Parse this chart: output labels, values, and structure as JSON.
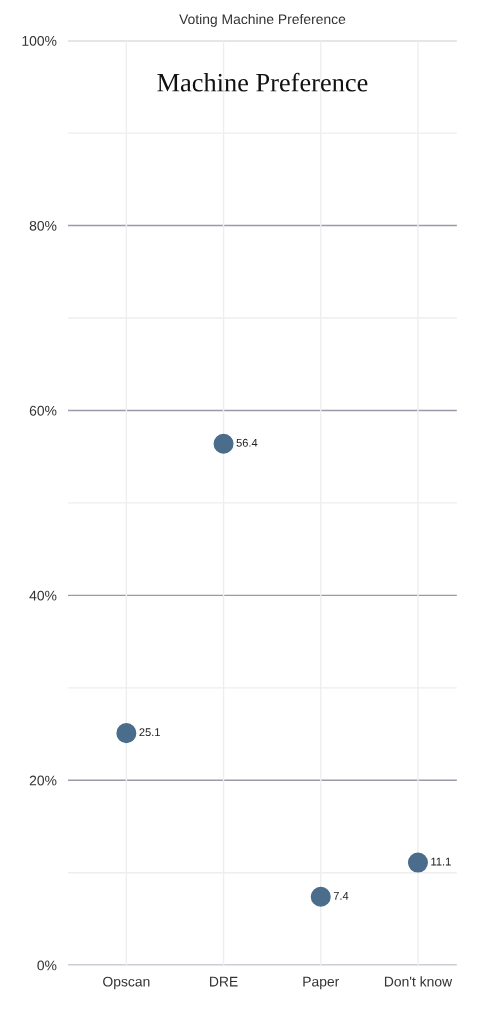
{
  "chart_data": {
    "type": "scatter",
    "title": "Voting Machine Preference",
    "subtitle": "Machine Preference",
    "categories": [
      "Opscan",
      "DRE",
      "Paper",
      "Don't know"
    ],
    "series": [
      {
        "color": "#4a6d8c",
        "values": [
          25.1,
          56.4,
          7.4,
          11.1
        ]
      }
    ],
    "ylim": [
      0,
      100
    ],
    "yticks": [
      {
        "value": 0,
        "label": "0%"
      },
      {
        "value": 10,
        "label": null
      },
      {
        "value": 20,
        "label": "20%"
      },
      {
        "value": 30,
        "label": null
      },
      {
        "value": 40,
        "label": "40%"
      },
      {
        "value": 50,
        "label": null
      },
      {
        "value": 60,
        "label": "60%"
      },
      {
        "value": 70,
        "label": null
      },
      {
        "value": 80,
        "label": "80%"
      },
      {
        "value": 90,
        "label": null
      },
      {
        "value": 100,
        "label": "100%"
      }
    ],
    "grid": true,
    "marker": "circle",
    "data_labels": true,
    "legend": false
  }
}
